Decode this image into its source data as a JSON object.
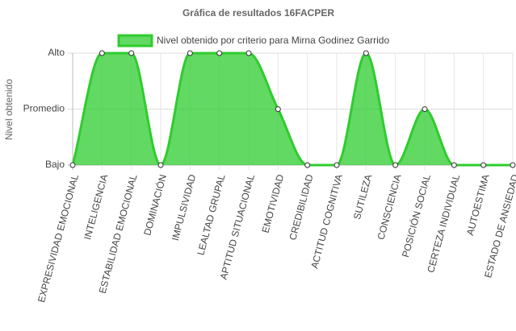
{
  "chart_data": {
    "type": "line",
    "title": "Gráfica de resultados 16FACPER",
    "y_label": "Nivel obtenido",
    "categories": [
      "EXPRESIVIDAD EMOCIONAL",
      "INTELIGENCIA",
      "ESTABILIDAD EMOCIONAL",
      "DOMINACIÓN",
      "IMPULSIVIDAD",
      "LEALTAD GRUPAL",
      "APTITUD SITUACIONAL",
      "EMOTIVIDAD",
      "CREDIBILIDAD",
      "ACTITUD COGNITIVA",
      "SUTILEZA",
      "CONSCIENCIA",
      "POSICIÓN SOCIAL",
      "CERTEZA INDIVIDUAL",
      "AUTOESTIMA",
      "ESTADO DE ANSIEDAD"
    ],
    "series": [
      {
        "name": "Nivel obtenido por criterio para Mirna Godinez Garrido",
        "color": "#2ecc2e",
        "values": [
          0,
          2,
          2,
          0,
          2,
          2,
          2,
          1,
          0,
          0,
          2,
          0,
          1,
          0,
          0,
          0
        ]
      }
    ],
    "ylim": [
      0,
      2
    ],
    "yticks": [
      {
        "value": 0,
        "label": "Bajo"
      },
      {
        "value": 1,
        "label": "Promedio"
      },
      {
        "value": 2,
        "label": "Alto"
      }
    ],
    "grid": true,
    "legend": "top",
    "fill": true
  }
}
